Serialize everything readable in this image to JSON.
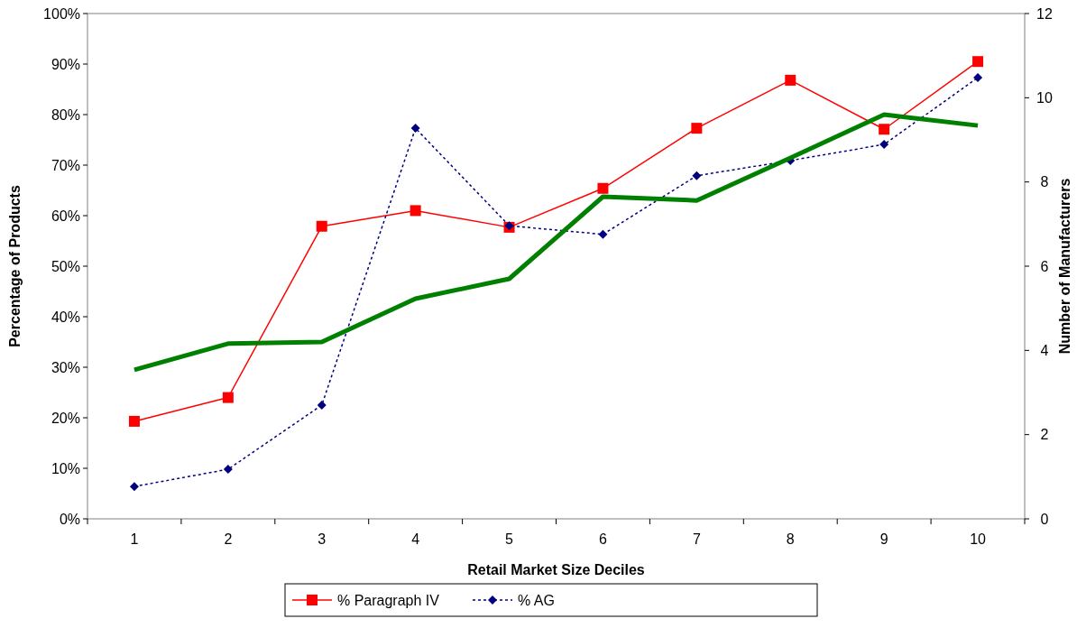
{
  "chart_data": {
    "type": "line",
    "xlabel": "Retail Market Size Deciles",
    "ylabel": "Percentage of Products",
    "y2label": "Number of Manufacturers",
    "categories": [
      "1",
      "2",
      "3",
      "4",
      "5",
      "6",
      "7",
      "8",
      "9",
      "10"
    ],
    "series": [
      {
        "name": "% Paragraph IV",
        "color": "#ff0000",
        "marker": "square",
        "line_style": "solid",
        "values": [
          19.3,
          24,
          57.9,
          61,
          57.7,
          65.4,
          77.3,
          86.8,
          77.1,
          90.5
        ]
      },
      {
        "name": "% AG",
        "color": "#000080",
        "marker": "diamond",
        "line_style": "dotted",
        "values": [
          6.4,
          9.8,
          22.5,
          77.3,
          58,
          56.3,
          67.9,
          70.9,
          74.1,
          87.3
        ]
      },
      {
        "color": "#008000",
        "marker": "none",
        "line_style": "solid",
        "axis": "y2",
        "values": [
          3.54,
          4.16,
          4.2,
          5.23,
          5.7,
          7.65,
          7.56,
          8.57,
          9.6,
          9.34
        ]
      }
    ],
    "ylim": [
      0,
      100
    ],
    "yticks": [
      {
        "value": 0,
        "label": "0%"
      },
      {
        "value": 10,
        "label": "10%"
      },
      {
        "value": 20,
        "label": "20%"
      },
      {
        "value": 30,
        "label": "30%"
      },
      {
        "value": 40,
        "label": "40%"
      },
      {
        "value": 50,
        "label": "50%"
      },
      {
        "value": 60,
        "label": "60%"
      },
      {
        "value": 70,
        "label": "70%"
      },
      {
        "value": 80,
        "label": "80%"
      },
      {
        "value": 90,
        "label": "90%"
      },
      {
        "value": 100,
        "label": "100%"
      }
    ],
    "y2lim": [
      0,
      12
    ],
    "y2ticks": [
      0,
      2,
      4,
      6,
      8,
      10,
      12
    ],
    "grid": false,
    "legend": "bottom"
  }
}
